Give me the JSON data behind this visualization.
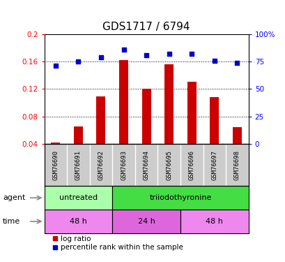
{
  "title": "GDS1717 / 6794",
  "samples": [
    "GSM76690",
    "GSM76691",
    "GSM76692",
    "GSM76693",
    "GSM76694",
    "GSM76695",
    "GSM76696",
    "GSM76697",
    "GSM76698"
  ],
  "log_ratio": [
    0.042,
    0.066,
    0.109,
    0.162,
    0.121,
    0.156,
    0.131,
    0.108,
    0.065
  ],
  "percentile_rank": [
    71,
    75,
    79,
    86,
    81,
    82,
    82,
    76,
    74
  ],
  "ylim_left": [
    0.04,
    0.2
  ],
  "ylim_right": [
    0,
    100
  ],
  "yticks_left": [
    0.04,
    0.08,
    0.12,
    0.16,
    0.2
  ],
  "yticks_right": [
    0,
    25,
    50,
    75,
    100
  ],
  "ytick_labels_left": [
    "0.04",
    "0.08",
    "0.12",
    "0.16",
    "0.2"
  ],
  "ytick_labels_right": [
    "0",
    "25",
    "50",
    "75",
    "100%"
  ],
  "bar_color": "#cc0000",
  "scatter_color": "#0000cc",
  "agent_groups": [
    {
      "label": "untreated",
      "start": 0,
      "end": 3,
      "color": "#aaffaa"
    },
    {
      "label": "triiodothyronine",
      "start": 3,
      "end": 9,
      "color": "#44dd44"
    }
  ],
  "time_groups": [
    {
      "label": "48 h",
      "start": 0,
      "end": 3,
      "color": "#ee88ee"
    },
    {
      "label": "24 h",
      "start": 3,
      "end": 6,
      "color": "#dd66dd"
    },
    {
      "label": "48 h",
      "start": 6,
      "end": 9,
      "color": "#ee88ee"
    }
  ],
  "legend_bar_label": "log ratio",
  "legend_scatter_label": "percentile rank within the sample",
  "background_color": "#ffffff",
  "label_area_color": "#cccccc",
  "agent_row_label": "agent",
  "time_row_label": "time"
}
